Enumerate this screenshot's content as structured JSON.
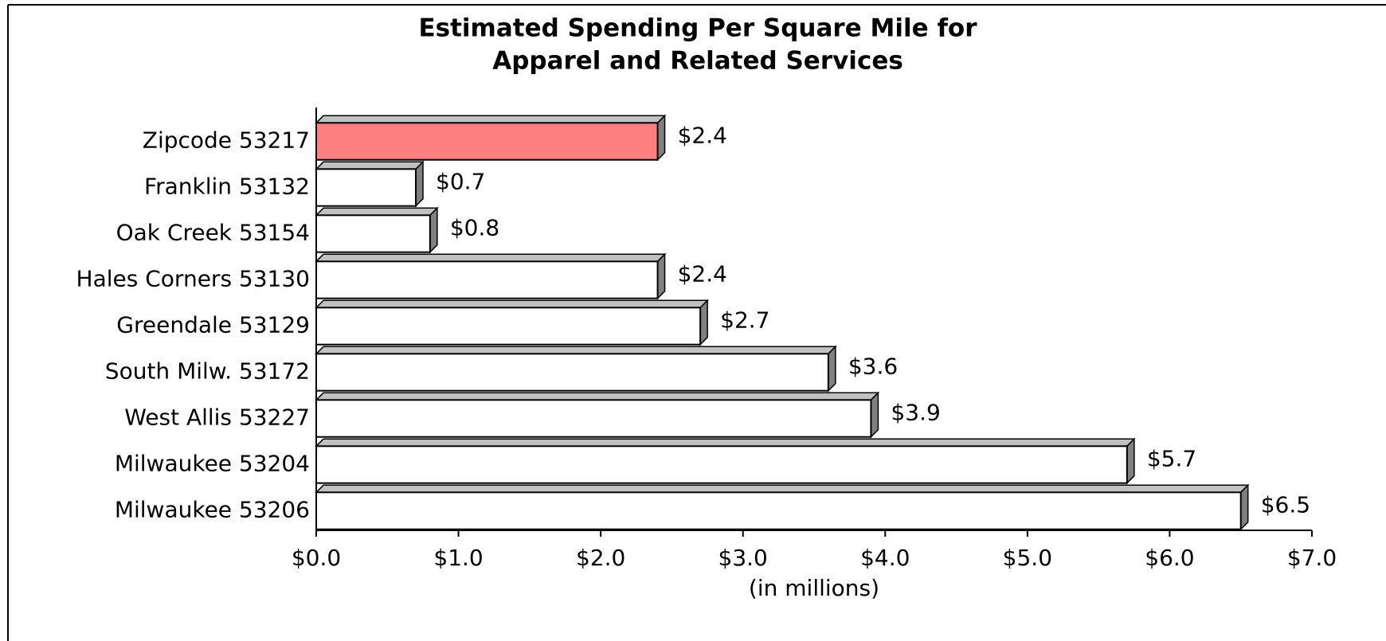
{
  "chart_data": {
    "type": "hbar",
    "title": [
      "Estimated Spending Per Square Mile for",
      "Apparel and Related Services"
    ],
    "categories": [
      "Zipcode 53217",
      "Franklin 53132",
      "Oak Creek 53154",
      "Hales Corners 53130",
      "Greendale 53129",
      "South Milw. 53172",
      "West Allis 53227",
      "Milwaukee 53204",
      "Milwaukee 53206"
    ],
    "values": [
      2.4,
      0.7,
      0.8,
      2.4,
      2.7,
      3.6,
      3.9,
      5.7,
      6.5
    ],
    "value_labels": [
      "$2.4",
      "$0.7",
      "$0.8",
      "$2.4",
      "$2.7",
      "$3.6",
      "$3.9",
      "$5.7",
      "$6.5"
    ],
    "colors": [
      "#ff8080",
      "#ffffff",
      "#ffffff",
      "#ffffff",
      "#ffffff",
      "#ffffff",
      "#ffffff",
      "#ffffff",
      "#ffffff"
    ],
    "xlabel": "(in millions)",
    "xlim": [
      0,
      7
    ],
    "xticks": [
      {
        "value": 0,
        "label": "$0.0"
      },
      {
        "value": 1,
        "label": "$1.0"
      },
      {
        "value": 2,
        "label": "$2.0"
      },
      {
        "value": 3,
        "label": "$3.0"
      },
      {
        "value": 4,
        "label": "$4.0"
      },
      {
        "value": 5,
        "label": "$5.0"
      },
      {
        "value": 6,
        "label": "$6.0"
      },
      {
        "value": 7,
        "label": "$7.0"
      }
    ]
  }
}
